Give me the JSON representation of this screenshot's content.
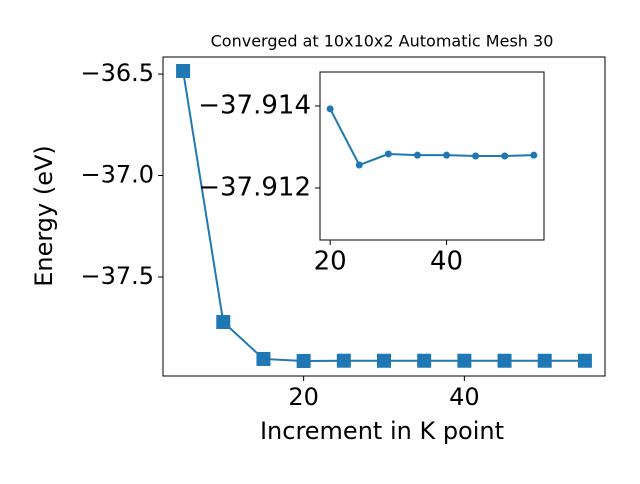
{
  "chart_data": [
    {
      "type": "line",
      "title": "Converged at 10x10x2 Automatic Mesh 30",
      "xlabel": "Increment in K point",
      "ylabel": "Energy (eV)",
      "x": [
        5,
        10,
        15,
        20,
        25,
        30,
        35,
        40,
        45,
        50,
        55
      ],
      "series": [
        {
          "color": "#1f77b4",
          "marker": "square",
          "values": [
            -36.485,
            -37.722,
            -37.904,
            -37.91393,
            -37.91256,
            -37.91283,
            -37.9128,
            -37.9128,
            -37.91278,
            -37.91278,
            -37.9128
          ]
        }
      ],
      "xlim": [
        2.5,
        57.5
      ],
      "xticks": [
        20,
        40
      ],
      "ylim": [
        -37.988,
        -36.416
      ],
      "yticks": [
        {
          "value": -36.5,
          "label": "−36.5"
        },
        {
          "value": -37.0,
          "label": "−37.0"
        },
        {
          "value": -37.5,
          "label": "−37.5"
        }
      ]
    },
    {
      "type": "line",
      "x": [
        20,
        25,
        30,
        35,
        40,
        45,
        50,
        55
      ],
      "series": [
        {
          "color": "#1f77b4",
          "marker": "circle",
          "values": [
            -37.91393,
            -37.91256,
            -37.91283,
            -37.9128,
            -37.9128,
            -37.91278,
            -37.91278,
            -37.9128
          ]
        }
      ],
      "xlim": [
        18.25,
        56.75
      ],
      "xticks": [
        20,
        40
      ],
      "ylim": [
        -37.91073,
        -37.91483
      ],
      "yticks": [
        {
          "value": -37.914,
          "label": "−37.914"
        },
        {
          "value": -37.912,
          "label": "−37.912"
        }
      ]
    }
  ]
}
